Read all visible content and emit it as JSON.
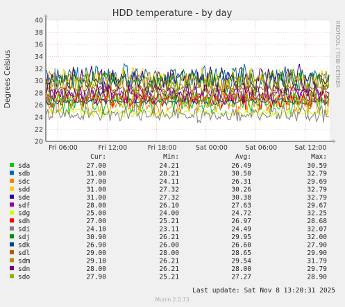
{
  "chart_data": {
    "type": "line",
    "title": "HDD temperature - by day",
    "ylabel": "Degrees Celsius",
    "side_label": "RRDTOOL / TOBI OETIKER",
    "ylim": [
      20,
      40
    ],
    "yticks": [
      20,
      22,
      24,
      26,
      28,
      30,
      32,
      34,
      36,
      38,
      40
    ],
    "xticks": [
      "Fri 06:00",
      "Fri 12:00",
      "Fri 18:00",
      "Sat 00:00",
      "Sat 06:00",
      "Sat 12:00"
    ],
    "grid": true,
    "columns": [
      "Cur:",
      "Min:",
      "Avg:",
      "Max:"
    ],
    "series": [
      {
        "name": "sda",
        "color": "#00cc00",
        "cur": "27.00",
        "min": "24.21",
        "avg": "26.49",
        "max": "30.59"
      },
      {
        "name": "sdb",
        "color": "#0066b3",
        "cur": "31.00",
        "min": "28.21",
        "avg": "30.50",
        "max": "32.79"
      },
      {
        "name": "sdc",
        "color": "#ff8000",
        "cur": "27.00",
        "min": "24.11",
        "avg": "26.31",
        "max": "29.69"
      },
      {
        "name": "sdd",
        "color": "#ffcc00",
        "cur": "31.00",
        "min": "27.32",
        "avg": "30.26",
        "max": "32.79"
      },
      {
        "name": "sde",
        "color": "#330099",
        "cur": "31.00",
        "min": "27.32",
        "avg": "30.38",
        "max": "32.79"
      },
      {
        "name": "sdf",
        "color": "#990099",
        "cur": "28.00",
        "min": "26.10",
        "avg": "27.63",
        "max": "29.67"
      },
      {
        "name": "sdg",
        "color": "#ccff00",
        "cur": "25.00",
        "min": "24.00",
        "avg": "24.72",
        "max": "32.25"
      },
      {
        "name": "sdh",
        "color": "#ff0000",
        "cur": "27.00",
        "min": "25.21",
        "avg": "26.97",
        "max": "28.68"
      },
      {
        "name": "sdi",
        "color": "#808080",
        "cur": "24.10",
        "min": "23.11",
        "avg": "24.49",
        "max": "32.07"
      },
      {
        "name": "sdj",
        "color": "#008f00",
        "cur": "30.90",
        "min": "26.21",
        "avg": "29.95",
        "max": "32.00"
      },
      {
        "name": "sdk",
        "color": "#00487d",
        "cur": "26.90",
        "min": "26.00",
        "avg": "26.60",
        "max": "27.90"
      },
      {
        "name": "sdl",
        "color": "#b35a00",
        "cur": "29.00",
        "min": "28.00",
        "avg": "28.65",
        "max": "29.90"
      },
      {
        "name": "sdm",
        "color": "#b38f00",
        "cur": "29.10",
        "min": "26.21",
        "avg": "29.54",
        "max": "31.79"
      },
      {
        "name": "sdn",
        "color": "#6b006b",
        "cur": "28.00",
        "min": "26.21",
        "avg": "28.00",
        "max": "29.79"
      },
      {
        "name": "sdo",
        "color": "#8fb300",
        "cur": "27.90",
        "min": "25.21",
        "avg": "27.27",
        "max": "28.90"
      }
    ],
    "last_update": "Last update: Sat Nov  8 13:20:31 2025",
    "footer": "Munin 2.0.73"
  }
}
